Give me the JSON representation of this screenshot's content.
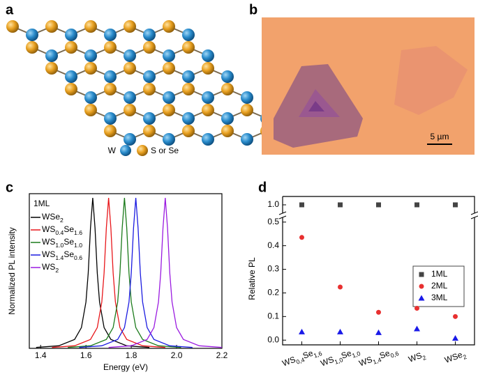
{
  "panel_labels": [
    "a",
    "b",
    "c",
    "d"
  ],
  "lattice_legend": [
    "W",
    "S or Se"
  ],
  "scale_bar": "5 µm",
  "chart_data": [
    {
      "type": "line",
      "xlabel": "Energy (eV)",
      "ylabel": "Normalized PL intensity",
      "legend_title": "1ML",
      "xlim": [
        1.35,
        2.2
      ],
      "xticks": [
        1.4,
        1.6,
        1.8,
        {
          "value": 2,
          "label": "2.0"
        },
        2.2
      ],
      "ylim": [
        0,
        1
      ],
      "series": [
        {
          "name": "WSe2",
          "color": "#000000",
          "x": [
            1.38,
            1.48,
            1.55,
            1.58,
            1.6,
            1.61,
            1.62,
            1.63,
            1.64,
            1.65,
            1.66,
            1.68,
            1.71,
            1.78,
            1.88
          ],
          "values": [
            0.006,
            0.017,
            0.059,
            0.138,
            0.308,
            0.5,
            0.8,
            1,
            0.8,
            0.5,
            0.308,
            0.138,
            0.059,
            0.017,
            0.006
          ]
        },
        {
          "name": "WS0.4Se1.6",
          "color": "#e8161a",
          "x": [
            1.45,
            1.55,
            1.62,
            1.65,
            1.67,
            1.68,
            1.69,
            1.7,
            1.71,
            1.72,
            1.73,
            1.75,
            1.78,
            1.85,
            1.95
          ],
          "values": [
            0.006,
            0.017,
            0.059,
            0.138,
            0.308,
            0.5,
            0.8,
            1,
            0.8,
            0.5,
            0.308,
            0.138,
            0.059,
            0.017,
            0.006
          ]
        },
        {
          "name": "WS1.0Se1.0",
          "color": "#1a7a1a",
          "x": [
            1.52,
            1.62,
            1.69,
            1.72,
            1.74,
            1.75,
            1.76,
            1.77,
            1.78,
            1.79,
            1.8,
            1.82,
            1.85,
            1.92,
            2.02
          ],
          "values": [
            0.006,
            0.017,
            0.059,
            0.138,
            0.308,
            0.5,
            0.8,
            1,
            0.8,
            0.5,
            0.308,
            0.138,
            0.059,
            0.017,
            0.006
          ]
        },
        {
          "name": "WS1.4Se0.6",
          "color": "#1a1ae0",
          "x": [
            1.57,
            1.67,
            1.74,
            1.77,
            1.79,
            1.8,
            1.81,
            1.82,
            1.83,
            1.84,
            1.85,
            1.87,
            1.9,
            1.97,
            2.07
          ],
          "values": [
            0.006,
            0.017,
            0.059,
            0.138,
            0.308,
            0.5,
            0.8,
            1,
            0.8,
            0.5,
            0.308,
            0.138,
            0.059,
            0.017,
            0.006
          ]
        },
        {
          "name": "WS2",
          "color": "#9a1ae0",
          "x": [
            1.7,
            1.8,
            1.87,
            1.9,
            1.92,
            1.93,
            1.94,
            1.95,
            1.96,
            1.97,
            1.98,
            2.0,
            2.03,
            2.1,
            2.2
          ],
          "values": [
            0.006,
            0.017,
            0.059,
            0.138,
            0.308,
            0.5,
            0.8,
            1,
            0.8,
            0.5,
            0.308,
            0.138,
            0.059,
            0.017,
            0.006
          ]
        }
      ]
    },
    {
      "type": "scatter",
      "ylabel": "Relative PL",
      "categories": [
        "WS0,4Se1,6",
        "WS1,0Se1,0",
        "WS1,4Se0,6",
        "WS2",
        "WSe2"
      ],
      "ylim": [
        -0.02,
        0.52
      ],
      "yticks": [
        {
          "value": 0,
          "label": "0.0"
        },
        0.1,
        0.2,
        0.3,
        0.4,
        0.5
      ],
      "ylim_upper": [
        0.95,
        1.05
      ],
      "yticks_upper": [
        {
          "value": 1,
          "label": "1.0"
        }
      ],
      "legend": "right",
      "series": [
        {
          "name": "1ML",
          "color": "#444444",
          "marker": "square",
          "values": [
            1,
            1,
            1,
            1,
            1
          ]
        },
        {
          "name": "2ML",
          "color": "#e83030",
          "marker": "circle",
          "values": [
            0.435,
            0.225,
            0.118,
            0.135,
            0.1
          ]
        },
        {
          "name": "3ML",
          "color": "#1a1ae8",
          "marker": "triangle",
          "values": [
            0.035,
            0.035,
            0.032,
            0.048,
            0.008
          ]
        }
      ]
    }
  ]
}
